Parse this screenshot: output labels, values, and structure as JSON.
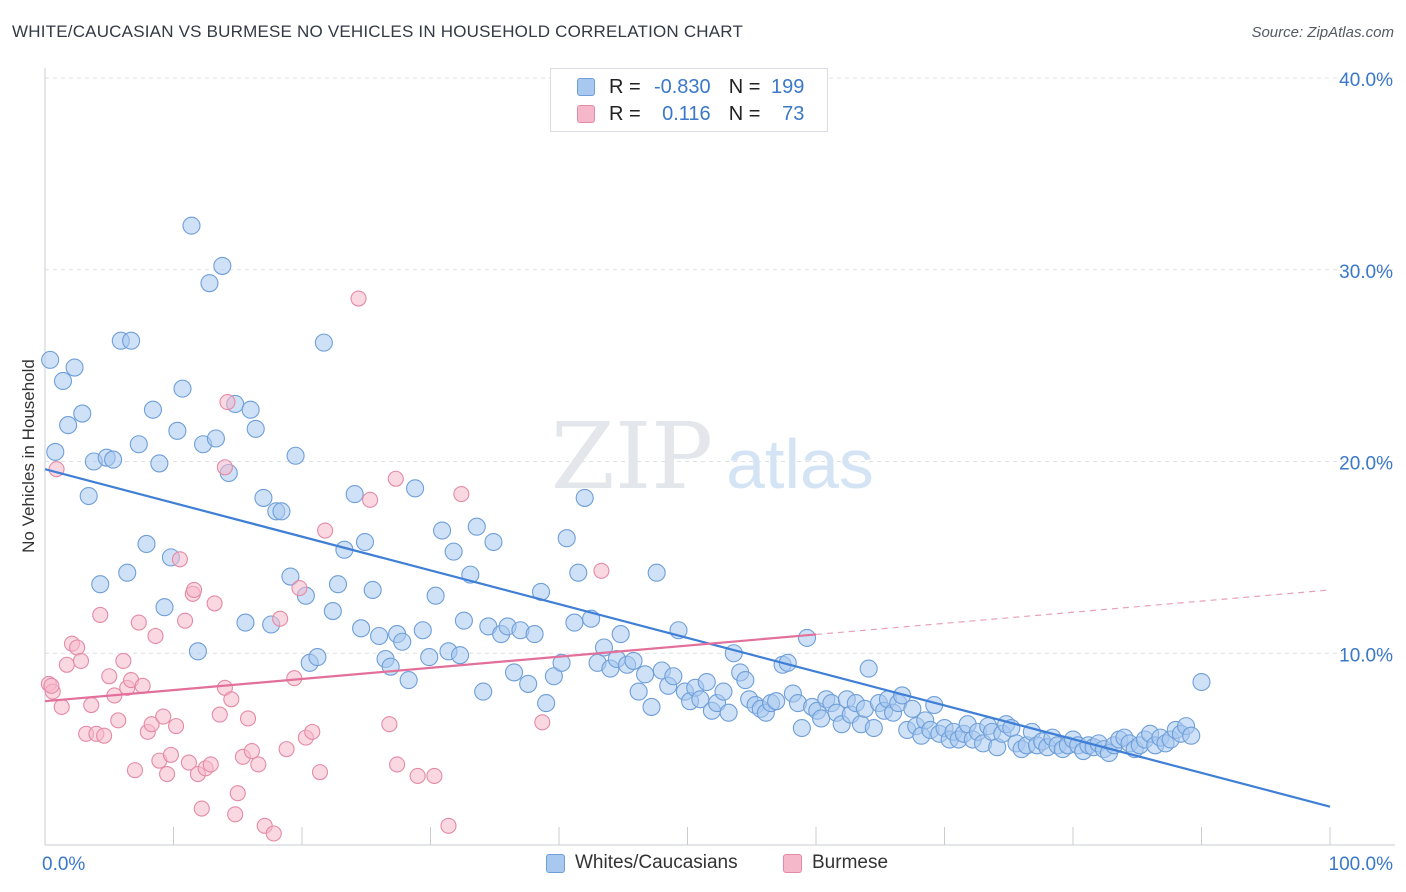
{
  "title": "WHITE/CAUCASIAN VS BURMESE NO VEHICLES IN HOUSEHOLD CORRELATION CHART",
  "source": "Source: ZipAtlas.com",
  "watermark": {
    "zip": "ZIP",
    "atlas": "atlas"
  },
  "legend": {
    "rows": [
      {
        "r_label": "R =",
        "r_value": "-0.830",
        "n_label": "N =",
        "n_value": "199",
        "color": "#a8c8f0",
        "border": "#6f9fd8"
      },
      {
        "r_label": "R =",
        "r_value": "0.116",
        "n_label": "N =",
        "n_value": "73",
        "color": "#f5b8cb",
        "border": "#e48aa6"
      }
    ]
  },
  "bottom_legend": {
    "items": [
      {
        "label": "Whites/Caucasians",
        "color": "#a8c8f0",
        "border": "#6f9fd8"
      },
      {
        "label": "Burmese",
        "color": "#f5b8cb",
        "border": "#e48aa6"
      }
    ]
  },
  "chart_data": {
    "type": "scatter",
    "title": "WHITE/CAUCASIAN VS BURMESE NO VEHICLES IN HOUSEHOLD CORRELATION CHART",
    "xlabel": "",
    "ylabel": "No Vehicles in Household",
    "xlim": [
      0,
      100
    ],
    "ylim": [
      0,
      40
    ],
    "x_tick_labels": [
      "0.0%",
      "100.0%"
    ],
    "y_ticks": [
      10,
      20,
      30,
      40
    ],
    "y_tick_labels": [
      "10.0%",
      "20.0%",
      "30.0%",
      "40.0%"
    ],
    "grid": true,
    "legend_position": "top-center",
    "series": [
      {
        "name": "Whites/Caucasians",
        "color": "#6f9fd8",
        "fill": "#a8c8f0",
        "r": -0.83,
        "n": 199,
        "trend": {
          "x": [
            0,
            100
          ],
          "y": [
            19.6,
            2.0
          ],
          "dashed_from": null
        },
        "points": [
          [
            0.4,
            25.3
          ],
          [
            0.8,
            20.5
          ],
          [
            1.4,
            24.2
          ],
          [
            1.8,
            21.9
          ],
          [
            2.3,
            24.9
          ],
          [
            2.9,
            22.5
          ],
          [
            3.4,
            18.2
          ],
          [
            3.8,
            20.0
          ],
          [
            4.3,
            13.6
          ],
          [
            4.8,
            20.2
          ],
          [
            5.3,
            20.1
          ],
          [
            5.9,
            26.3
          ],
          [
            6.4,
            14.2
          ],
          [
            6.7,
            26.3
          ],
          [
            7.3,
            20.9
          ],
          [
            7.9,
            15.7
          ],
          [
            8.4,
            22.7
          ],
          [
            8.9,
            19.9
          ],
          [
            9.3,
            12.4
          ],
          [
            9.8,
            15.0
          ],
          [
            10.3,
            21.6
          ],
          [
            10.7,
            23.8
          ],
          [
            11.4,
            32.3
          ],
          [
            11.9,
            10.1
          ],
          [
            12.3,
            20.9
          ],
          [
            12.8,
            29.3
          ],
          [
            13.3,
            21.2
          ],
          [
            13.8,
            30.2
          ],
          [
            14.3,
            19.4
          ],
          [
            14.8,
            23.0
          ],
          [
            15.6,
            11.6
          ],
          [
            16.0,
            22.7
          ],
          [
            16.4,
            21.7
          ],
          [
            17.0,
            18.1
          ],
          [
            17.6,
            11.5
          ],
          [
            18.0,
            17.4
          ],
          [
            18.4,
            17.4
          ],
          [
            19.1,
            14.0
          ],
          [
            19.5,
            20.3
          ],
          [
            20.3,
            13.0
          ],
          [
            20.6,
            9.5
          ],
          [
            21.2,
            9.8
          ],
          [
            21.7,
            26.2
          ],
          [
            22.4,
            12.2
          ],
          [
            22.8,
            13.6
          ],
          [
            23.3,
            15.4
          ],
          [
            24.1,
            18.3
          ],
          [
            24.6,
            11.3
          ],
          [
            24.9,
            15.8
          ],
          [
            25.5,
            13.3
          ],
          [
            26.0,
            10.9
          ],
          [
            26.5,
            9.7
          ],
          [
            26.9,
            9.3
          ],
          [
            27.4,
            11.0
          ],
          [
            27.8,
            10.6
          ],
          [
            28.3,
            8.6
          ],
          [
            28.8,
            18.6
          ],
          [
            29.4,
            11.2
          ],
          [
            29.9,
            9.8
          ],
          [
            30.4,
            13.0
          ],
          [
            30.9,
            16.4
          ],
          [
            31.4,
            10.1
          ],
          [
            31.8,
            15.3
          ],
          [
            32.3,
            9.9
          ],
          [
            32.6,
            11.7
          ],
          [
            33.1,
            14.1
          ],
          [
            33.6,
            16.6
          ],
          [
            34.1,
            8.0
          ],
          [
            34.5,
            11.4
          ],
          [
            34.9,
            15.8
          ],
          [
            35.5,
            11.0
          ],
          [
            36.0,
            11.4
          ],
          [
            36.5,
            9.0
          ],
          [
            37.0,
            11.2
          ],
          [
            37.6,
            8.4
          ],
          [
            38.1,
            11.0
          ],
          [
            38.6,
            13.2
          ],
          [
            39.0,
            7.4
          ],
          [
            39.6,
            8.8
          ],
          [
            40.2,
            9.5
          ],
          [
            40.6,
            16.0
          ],
          [
            41.2,
            11.6
          ],
          [
            41.5,
            14.2
          ],
          [
            42.0,
            18.1
          ],
          [
            42.5,
            11.8
          ],
          [
            43.0,
            9.5
          ],
          [
            43.5,
            10.3
          ],
          [
            44.0,
            9.2
          ],
          [
            44.5,
            9.7
          ],
          [
            44.8,
            11.0
          ],
          [
            45.3,
            9.4
          ],
          [
            45.8,
            9.6
          ],
          [
            46.2,
            8.0
          ],
          [
            46.7,
            8.9
          ],
          [
            47.2,
            7.2
          ],
          [
            47.6,
            14.2
          ],
          [
            48.0,
            9.1
          ],
          [
            48.5,
            8.3
          ],
          [
            48.9,
            8.8
          ],
          [
            49.3,
            11.2
          ],
          [
            49.8,
            8.0
          ],
          [
            50.2,
            7.5
          ],
          [
            50.6,
            8.2
          ],
          [
            51.0,
            7.6
          ],
          [
            51.5,
            8.5
          ],
          [
            51.9,
            7.0
          ],
          [
            52.3,
            7.4
          ],
          [
            52.8,
            8.0
          ],
          [
            53.2,
            6.9
          ],
          [
            53.6,
            10.0
          ],
          [
            54.1,
            9.0
          ],
          [
            54.5,
            8.6
          ],
          [
            54.8,
            7.6
          ],
          [
            55.3,
            7.3
          ],
          [
            55.7,
            7.1
          ],
          [
            56.1,
            6.9
          ],
          [
            56.5,
            7.4
          ],
          [
            56.9,
            7.5
          ],
          [
            57.4,
            9.4
          ],
          [
            57.8,
            9.5
          ],
          [
            58.2,
            7.9
          ],
          [
            58.6,
            7.4
          ],
          [
            58.9,
            6.1
          ],
          [
            59.3,
            10.8
          ],
          [
            59.7,
            7.2
          ],
          [
            60.1,
            7.0
          ],
          [
            60.4,
            6.6
          ],
          [
            60.8,
            7.6
          ],
          [
            61.2,
            7.4
          ],
          [
            61.6,
            6.9
          ],
          [
            62.0,
            6.3
          ],
          [
            62.4,
            7.6
          ],
          [
            62.7,
            6.8
          ],
          [
            63.1,
            7.4
          ],
          [
            63.5,
            6.3
          ],
          [
            63.8,
            7.1
          ],
          [
            64.1,
            9.2
          ],
          [
            64.5,
            6.1
          ],
          [
            64.9,
            7.4
          ],
          [
            65.3,
            7.0
          ],
          [
            65.6,
            7.6
          ],
          [
            66.0,
            6.9
          ],
          [
            66.4,
            7.4
          ],
          [
            66.7,
            7.8
          ],
          [
            67.1,
            6.0
          ],
          [
            67.5,
            7.1
          ],
          [
            67.8,
            6.2
          ],
          [
            68.2,
            5.7
          ],
          [
            68.5,
            6.5
          ],
          [
            68.9,
            6.0
          ],
          [
            69.2,
            7.3
          ],
          [
            69.6,
            5.8
          ],
          [
            70.0,
            6.1
          ],
          [
            70.4,
            5.5
          ],
          [
            70.7,
            5.9
          ],
          [
            71.1,
            5.5
          ],
          [
            71.5,
            5.8
          ],
          [
            71.8,
            6.3
          ],
          [
            72.2,
            5.5
          ],
          [
            72.6,
            5.9
          ],
          [
            73.0,
            5.3
          ],
          [
            73.4,
            6.2
          ],
          [
            73.7,
            5.9
          ],
          [
            74.1,
            5.1
          ],
          [
            74.5,
            5.8
          ],
          [
            74.8,
            6.3
          ],
          [
            75.2,
            6.1
          ],
          [
            75.6,
            5.3
          ],
          [
            76.0,
            5.0
          ],
          [
            76.4,
            5.2
          ],
          [
            76.8,
            5.9
          ],
          [
            77.2,
            5.2
          ],
          [
            77.6,
            5.4
          ],
          [
            78.0,
            5.1
          ],
          [
            78.4,
            5.6
          ],
          [
            78.8,
            5.2
          ],
          [
            79.2,
            5.0
          ],
          [
            79.6,
            5.2
          ],
          [
            80.0,
            5.5
          ],
          [
            80.4,
            5.2
          ],
          [
            80.8,
            4.9
          ],
          [
            81.2,
            5.2
          ],
          [
            81.6,
            5.1
          ],
          [
            82.0,
            5.3
          ],
          [
            82.4,
            5.0
          ],
          [
            82.8,
            4.8
          ],
          [
            83.2,
            5.2
          ],
          [
            83.6,
            5.5
          ],
          [
            84.0,
            5.6
          ],
          [
            84.4,
            5.3
          ],
          [
            84.8,
            5.0
          ],
          [
            85.2,
            5.2
          ],
          [
            85.6,
            5.5
          ],
          [
            86.0,
            5.8
          ],
          [
            86.4,
            5.2
          ],
          [
            86.8,
            5.6
          ],
          [
            87.2,
            5.3
          ],
          [
            87.6,
            5.5
          ],
          [
            88.0,
            6.0
          ],
          [
            88.4,
            5.8
          ],
          [
            88.8,
            6.2
          ],
          [
            89.2,
            5.7
          ],
          [
            90.0,
            8.5
          ]
        ]
      },
      {
        "name": "Burmese",
        "color": "#e48aa6",
        "fill": "#f5b8cb",
        "r": 0.116,
        "n": 73,
        "trend": {
          "x": [
            0,
            100
          ],
          "y": [
            7.5,
            13.3
          ],
          "solid_until_x": 60
        },
        "points": [
          [
            0.3,
            8.4
          ],
          [
            0.6,
            8.0
          ],
          [
            0.9,
            19.6
          ],
          [
            1.3,
            7.2
          ],
          [
            1.7,
            9.4
          ],
          [
            2.1,
            10.5
          ],
          [
            2.5,
            10.3
          ],
          [
            2.8,
            9.6
          ],
          [
            3.2,
            5.8
          ],
          [
            3.6,
            7.3
          ],
          [
            4.0,
            5.8
          ],
          [
            4.3,
            12.0
          ],
          [
            4.6,
            5.7
          ],
          [
            5.0,
            8.8
          ],
          [
            5.4,
            7.8
          ],
          [
            5.7,
            6.5
          ],
          [
            6.1,
            9.6
          ],
          [
            6.4,
            8.2
          ],
          [
            6.7,
            8.6
          ],
          [
            7.0,
            3.9
          ],
          [
            7.3,
            11.6
          ],
          [
            7.6,
            8.3
          ],
          [
            8.0,
            5.9
          ],
          [
            8.3,
            6.3
          ],
          [
            8.6,
            10.9
          ],
          [
            8.9,
            4.4
          ],
          [
            9.2,
            6.7
          ],
          [
            9.5,
            3.7
          ],
          [
            9.8,
            4.7
          ],
          [
            10.2,
            6.2
          ],
          [
            10.5,
            14.9
          ],
          [
            10.9,
            11.7
          ],
          [
            11.2,
            4.3
          ],
          [
            11.5,
            13.1
          ],
          [
            11.9,
            3.7
          ],
          [
            12.2,
            1.9
          ],
          [
            12.5,
            4.0
          ],
          [
            12.9,
            4.2
          ],
          [
            13.2,
            12.6
          ],
          [
            13.6,
            6.8
          ],
          [
            14.0,
            8.2
          ],
          [
            14.2,
            23.1
          ],
          [
            14.5,
            7.6
          ],
          [
            14.8,
            1.6
          ],
          [
            15.0,
            2.7
          ],
          [
            15.4,
            4.6
          ],
          [
            15.8,
            6.6
          ],
          [
            16.1,
            4.9
          ],
          [
            16.6,
            4.2
          ],
          [
            17.1,
            1.0
          ],
          [
            17.8,
            0.6
          ],
          [
            18.3,
            11.8
          ],
          [
            18.8,
            5.0
          ],
          [
            19.4,
            8.7
          ],
          [
            19.8,
            13.4
          ],
          [
            20.3,
            5.6
          ],
          [
            20.8,
            5.9
          ],
          [
            21.4,
            3.8
          ],
          [
            24.4,
            28.5
          ],
          [
            25.3,
            18.0
          ],
          [
            27.3,
            19.1
          ],
          [
            26.8,
            6.3
          ],
          [
            27.4,
            4.2
          ],
          [
            29.0,
            3.6
          ],
          [
            30.3,
            3.6
          ],
          [
            31.4,
            1.0
          ],
          [
            32.4,
            18.3
          ],
          [
            38.7,
            6.4
          ],
          [
            43.3,
            14.3
          ],
          [
            14.0,
            19.7
          ],
          [
            0.5,
            8.3
          ],
          [
            11.6,
            13.3
          ],
          [
            21.8,
            16.4
          ]
        ]
      }
    ]
  }
}
